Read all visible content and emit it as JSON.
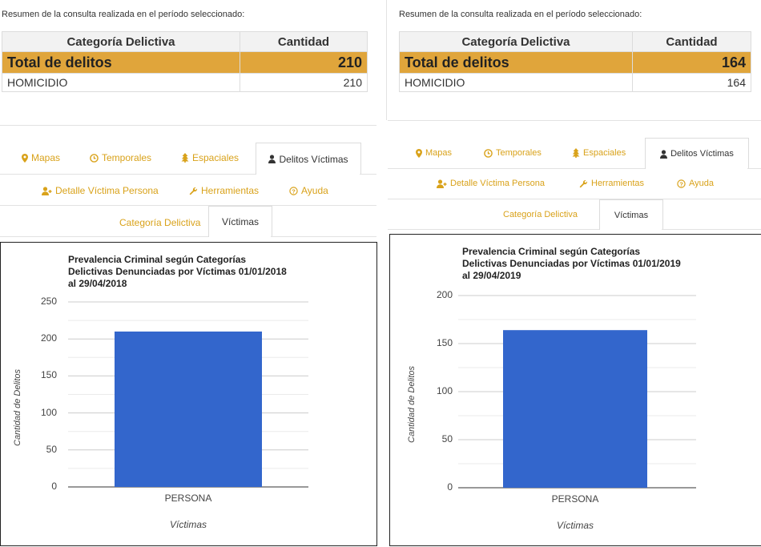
{
  "colors": {
    "accent": "#d9a21a",
    "total_row": "#e0a53b",
    "bar": "#3366cc"
  },
  "panels": [
    {
      "summary_text": "Resumen de la consulta realizada en el período seleccionado:",
      "table": {
        "headers": [
          "Categoría Delictiva",
          "Cantidad"
        ],
        "total": {
          "label": "Total de delitos",
          "value": "210"
        },
        "rows": [
          {
            "label": "HOMICIDIO",
            "value": "210"
          }
        ]
      },
      "tabs": [
        {
          "label": "Mapas",
          "icon": "map-marker-icon"
        },
        {
          "label": "Temporales",
          "icon": "clock-icon"
        },
        {
          "label": "Espaciales",
          "icon": "tree-icon"
        },
        {
          "label": "Delitos Víctimas",
          "icon": "user-icon",
          "active": true
        },
        {
          "label": "Detalle Víctima Persona",
          "icon": "user-plus-icon"
        },
        {
          "label": "Herramientas",
          "icon": "wrench-icon"
        },
        {
          "label": "Ayuda",
          "icon": "question-icon"
        }
      ],
      "subtabs": [
        {
          "label": "Categoría Delictiva"
        },
        {
          "label": "Víctimas",
          "active": true
        }
      ],
      "chart_data": {
        "type": "bar",
        "title": "Prevalencia Criminal según Categorías Delictivas Denunciadas por Víctimas 01/01/2018 al 29/04/2018",
        "title_lines": [
          "Prevalencia Criminal según Categorías",
          "Delictivas Denunciadas por Víctimas 01/01/2018",
          "al 29/04/2018"
        ],
        "categories": [
          "PERSONA"
        ],
        "values": [
          210
        ],
        "xlabel": "Víctimas",
        "ylabel": "Cantidad de Delitos",
        "ylim": [
          0,
          250
        ],
        "yticks": [
          "250",
          "200",
          "150",
          "100",
          "50",
          "0"
        ],
        "grid": true
      }
    },
    {
      "summary_text": "Resumen de la consulta realizada en el período seleccionado:",
      "table": {
        "headers": [
          "Categoría Delictiva",
          "Cantidad"
        ],
        "total": {
          "label": "Total de delitos",
          "value": "164"
        },
        "rows": [
          {
            "label": "HOMICIDIO",
            "value": "164"
          }
        ]
      },
      "tabs": [
        {
          "label": "Mapas",
          "icon": "map-marker-icon"
        },
        {
          "label": "Temporales",
          "icon": "clock-icon"
        },
        {
          "label": "Espaciales",
          "icon": "tree-icon"
        },
        {
          "label": "Delitos Víctimas",
          "icon": "user-icon",
          "active": true
        },
        {
          "label": "Detalle Víctima Persona",
          "icon": "user-plus-icon"
        },
        {
          "label": "Herramientas",
          "icon": "wrench-icon"
        },
        {
          "label": "Ayuda",
          "icon": "question-icon"
        }
      ],
      "subtabs": [
        {
          "label": "Categoría Delictiva"
        },
        {
          "label": "Víctimas",
          "active": true
        }
      ],
      "chart_data": {
        "type": "bar",
        "title": "Prevalencia Criminal según Categorías Delictivas Denunciadas por Víctimas 01/01/2019 al 29/04/2019",
        "title_lines": [
          "Prevalencia Criminal según Categorías",
          "Delictivas Denunciadas por Víctimas 01/01/2019",
          "al 29/04/2019"
        ],
        "categories": [
          "PERSONA"
        ],
        "values": [
          164
        ],
        "xlabel": "Víctimas",
        "ylabel": "Cantidad de Delitos",
        "ylim": [
          0,
          200
        ],
        "yticks": [
          "200",
          "150",
          "100",
          "50",
          "0"
        ],
        "grid": true
      }
    }
  ]
}
